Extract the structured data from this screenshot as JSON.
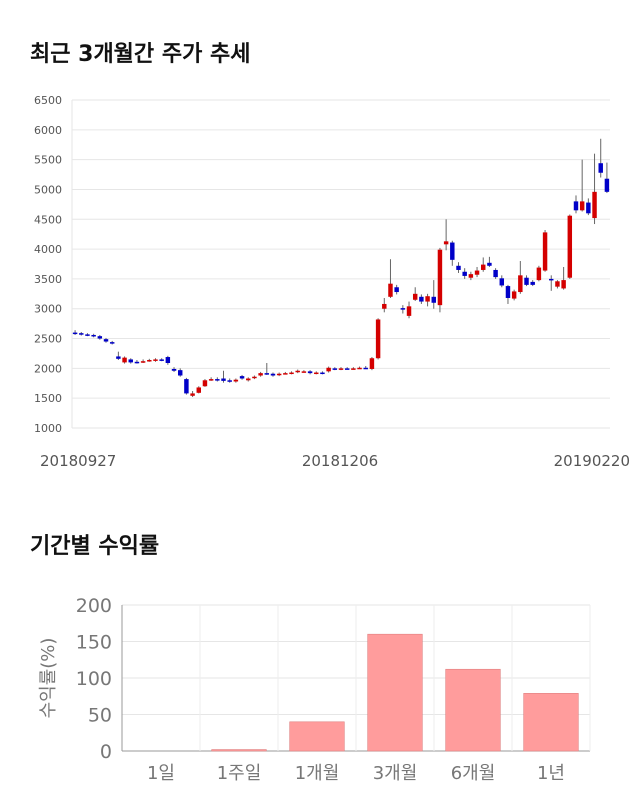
{
  "title_price": "최근 3개월간 주가 추세",
  "title_returns": "기간별 수익률",
  "chart_data": [
    {
      "type": "candlestick",
      "title": "최근 3개월간 주가 추세",
      "ylim": [
        1000,
        6500
      ],
      "y_ticks": [
        "6500",
        "6000",
        "5500",
        "5000",
        "4500",
        "4000",
        "3500",
        "3000",
        "2500",
        "2000",
        "1500",
        "1000"
      ],
      "x_tick_labels": [
        "20180927",
        "20181206",
        "20190220"
      ],
      "colors": {
        "up": "#d40000",
        "down": "#0000c8",
        "wick": "#666666"
      },
      "candles": [
        {
          "o": 2600,
          "c": 2580,
          "h": 2640,
          "l": 2560
        },
        {
          "o": 2590,
          "c": 2570,
          "h": 2610,
          "l": 2550
        },
        {
          "o": 2570,
          "c": 2560,
          "h": 2590,
          "l": 2540
        },
        {
          "o": 2560,
          "c": 2540,
          "h": 2580,
          "l": 2520
        },
        {
          "o": 2540,
          "c": 2500,
          "h": 2560,
          "l": 2480
        },
        {
          "o": 2490,
          "c": 2450,
          "h": 2510,
          "l": 2430
        },
        {
          "o": 2440,
          "c": 2420,
          "h": 2460,
          "l": 2400
        },
        {
          "o": 2200,
          "c": 2160,
          "h": 2280,
          "l": 2140
        },
        {
          "o": 2100,
          "c": 2180,
          "h": 2200,
          "l": 2080
        },
        {
          "o": 2150,
          "c": 2100,
          "h": 2170,
          "l": 2080
        },
        {
          "o": 2110,
          "c": 2100,
          "h": 2140,
          "l": 2080
        },
        {
          "o": 2100,
          "c": 2120,
          "h": 2150,
          "l": 2090
        },
        {
          "o": 2130,
          "c": 2140,
          "h": 2160,
          "l": 2110
        },
        {
          "o": 2130,
          "c": 2150,
          "h": 2170,
          "l": 2110
        },
        {
          "o": 2150,
          "c": 2140,
          "h": 2170,
          "l": 2120
        },
        {
          "o": 2190,
          "c": 2090,
          "h": 2210,
          "l": 2060
        },
        {
          "o": 1990,
          "c": 1960,
          "h": 2020,
          "l": 1940
        },
        {
          "o": 1970,
          "c": 1880,
          "h": 2000,
          "l": 1860
        },
        {
          "o": 1820,
          "c": 1580,
          "h": 1840,
          "l": 1560
        },
        {
          "o": 1540,
          "c": 1580,
          "h": 1620,
          "l": 1520
        },
        {
          "o": 1590,
          "c": 1680,
          "h": 1700,
          "l": 1580
        },
        {
          "o": 1700,
          "c": 1800,
          "h": 1820,
          "l": 1690
        },
        {
          "o": 1820,
          "c": 1820,
          "h": 1850,
          "l": 1790
        },
        {
          "o": 1820,
          "c": 1800,
          "h": 1850,
          "l": 1780
        },
        {
          "o": 1830,
          "c": 1790,
          "h": 1960,
          "l": 1760
        },
        {
          "o": 1800,
          "c": 1780,
          "h": 1830,
          "l": 1760
        },
        {
          "o": 1780,
          "c": 1810,
          "h": 1830,
          "l": 1760
        },
        {
          "o": 1870,
          "c": 1830,
          "h": 1890,
          "l": 1810
        },
        {
          "o": 1800,
          "c": 1830,
          "h": 1850,
          "l": 1780
        },
        {
          "o": 1840,
          "c": 1860,
          "h": 1880,
          "l": 1820
        },
        {
          "o": 1880,
          "c": 1920,
          "h": 1940,
          "l": 1860
        },
        {
          "o": 1920,
          "c": 1910,
          "h": 2090,
          "l": 1890
        },
        {
          "o": 1910,
          "c": 1880,
          "h": 1930,
          "l": 1860
        },
        {
          "o": 1890,
          "c": 1910,
          "h": 1930,
          "l": 1870
        },
        {
          "o": 1910,
          "c": 1920,
          "h": 1940,
          "l": 1900
        },
        {
          "o": 1920,
          "c": 1930,
          "h": 1950,
          "l": 1900
        },
        {
          "o": 1940,
          "c": 1960,
          "h": 1980,
          "l": 1920
        },
        {
          "o": 1950,
          "c": 1950,
          "h": 1970,
          "l": 1930
        },
        {
          "o": 1950,
          "c": 1920,
          "h": 1970,
          "l": 1900
        },
        {
          "o": 1920,
          "c": 1930,
          "h": 1950,
          "l": 1900
        },
        {
          "o": 1930,
          "c": 1920,
          "h": 1950,
          "l": 1900
        },
        {
          "o": 1950,
          "c": 2010,
          "h": 2030,
          "l": 1930
        },
        {
          "o": 2000,
          "c": 1990,
          "h": 2020,
          "l": 1970
        },
        {
          "o": 1990,
          "c": 2000,
          "h": 2020,
          "l": 1970
        },
        {
          "o": 2000,
          "c": 1990,
          "h": 2020,
          "l": 1980
        },
        {
          "o": 1990,
          "c": 2000,
          "h": 2020,
          "l": 1980
        },
        {
          "o": 2000,
          "c": 2010,
          "h": 2030,
          "l": 1990
        },
        {
          "o": 2010,
          "c": 2000,
          "h": 2040,
          "l": 1990
        },
        {
          "o": 1990,
          "c": 2170,
          "h": 2190,
          "l": 1970
        },
        {
          "o": 2170,
          "c": 2820,
          "h": 2840,
          "l": 2150
        },
        {
          "o": 3000,
          "c": 3080,
          "h": 3180,
          "l": 2940
        },
        {
          "o": 3200,
          "c": 3420,
          "h": 3830,
          "l": 3180
        },
        {
          "o": 3360,
          "c": 3280,
          "h": 3400,
          "l": 3240
        },
        {
          "o": 3010,
          "c": 2990,
          "h": 3060,
          "l": 2920
        },
        {
          "o": 2880,
          "c": 3040,
          "h": 3120,
          "l": 2840
        },
        {
          "o": 3150,
          "c": 3250,
          "h": 3360,
          "l": 3130
        },
        {
          "o": 3200,
          "c": 3120,
          "h": 3240,
          "l": 3080
        },
        {
          "o": 3120,
          "c": 3210,
          "h": 3250,
          "l": 3040
        },
        {
          "o": 3200,
          "c": 3100,
          "h": 3480,
          "l": 3000
        },
        {
          "o": 3060,
          "c": 3990,
          "h": 4020,
          "l": 2940
        },
        {
          "o": 4080,
          "c": 4130,
          "h": 4500,
          "l": 3980
        },
        {
          "o": 4110,
          "c": 3820,
          "h": 4140,
          "l": 3720
        },
        {
          "o": 3720,
          "c": 3650,
          "h": 3780,
          "l": 3600
        },
        {
          "o": 3620,
          "c": 3550,
          "h": 3680,
          "l": 3500
        },
        {
          "o": 3520,
          "c": 3580,
          "h": 3620,
          "l": 3480
        },
        {
          "o": 3570,
          "c": 3640,
          "h": 3700,
          "l": 3530
        },
        {
          "o": 3650,
          "c": 3740,
          "h": 3860,
          "l": 3620
        },
        {
          "o": 3770,
          "c": 3720,
          "h": 3870,
          "l": 3700
        },
        {
          "o": 3650,
          "c": 3530,
          "h": 3680,
          "l": 3500
        },
        {
          "o": 3510,
          "c": 3390,
          "h": 3560,
          "l": 3360
        },
        {
          "o": 3380,
          "c": 3180,
          "h": 3400,
          "l": 3080
        },
        {
          "o": 3170,
          "c": 3290,
          "h": 3320,
          "l": 3140
        },
        {
          "o": 3280,
          "c": 3560,
          "h": 3800,
          "l": 3250
        },
        {
          "o": 3520,
          "c": 3400,
          "h": 3560,
          "l": 3380
        },
        {
          "o": 3450,
          "c": 3400,
          "h": 3480,
          "l": 3380
        },
        {
          "o": 3480,
          "c": 3690,
          "h": 3720,
          "l": 3460
        },
        {
          "o": 3640,
          "c": 4280,
          "h": 4320,
          "l": 3620
        },
        {
          "o": 3500,
          "c": 3480,
          "h": 3560,
          "l": 3300
        },
        {
          "o": 3370,
          "c": 3460,
          "h": 3480,
          "l": 3340
        },
        {
          "o": 3340,
          "c": 3480,
          "h": 3700,
          "l": 3320
        },
        {
          "o": 3520,
          "c": 4560,
          "h": 4580,
          "l": 3500
        },
        {
          "o": 4800,
          "c": 4650,
          "h": 4900,
          "l": 4600
        },
        {
          "o": 4650,
          "c": 4800,
          "h": 5500,
          "l": 4630
        },
        {
          "o": 4780,
          "c": 4600,
          "h": 4850,
          "l": 4570
        },
        {
          "o": 4520,
          "c": 4960,
          "h": 5600,
          "l": 4420
        },
        {
          "o": 5440,
          "c": 5280,
          "h": 5850,
          "l": 5200
        },
        {
          "o": 5180,
          "c": 4960,
          "h": 5450,
          "l": 4940
        }
      ]
    },
    {
      "type": "bar",
      "title": "기간별 수익률",
      "categories": [
        "1일",
        "1주일",
        "1개월",
        "3개월",
        "6개월",
        "1년"
      ],
      "values": [
        0,
        2,
        40,
        160,
        112,
        79
      ],
      "ylabel": "수익률(%)",
      "ylim": [
        0,
        200
      ],
      "y_ticks": [
        "200",
        "150",
        "100",
        "50",
        "0"
      ],
      "bar_color": "#ff9c9c"
    }
  ]
}
